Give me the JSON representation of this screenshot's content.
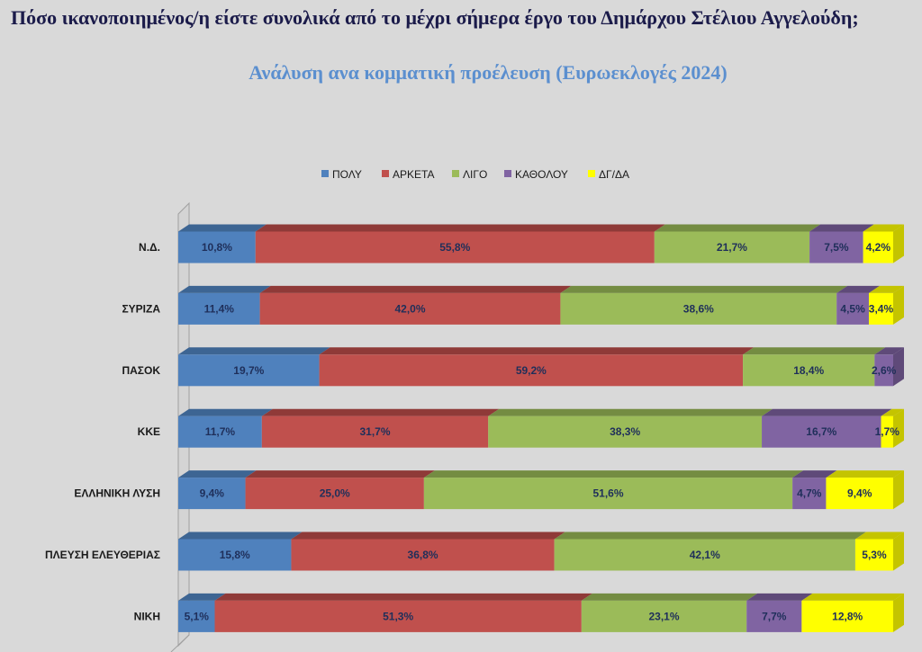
{
  "title": "Πόσο ικανοποιημένος/η είστε συνολικά  από το μέχρι σήμερα έργο του Δημάρχου Στέλιου Αγγελούδη;",
  "subtitle": "Ανάλυση ανα κομματική προέλευση (Ευρωεκλογές 2024)",
  "chart_data": {
    "type": "bar",
    "orientation": "horizontal",
    "stacked": "percent",
    "legend_position": "top",
    "categories": [
      "Ν.Δ.",
      "ΣΥΡΙΖΑ",
      "ΠΑΣΟΚ",
      "ΚΚΕ",
      "ΕΛΛΗΝΙΚΗ ΛΥΣΗ",
      "ΠΛΕΥΣΗ ΕΛΕΥΘΕΡΙΑΣ",
      "ΝΙΚΗ"
    ],
    "series": [
      {
        "name": "ΠΟΛΥ",
        "color": "#4f81bd",
        "top": "#3d6593",
        "values": [
          10.8,
          11.4,
          19.7,
          11.7,
          9.4,
          15.8,
          5.1
        ],
        "labels": [
          "10,8%",
          "11,4%",
          "19,7%",
          "11,7%",
          "9,4%",
          "15,8%",
          "5,1%"
        ]
      },
      {
        "name": "ΑΡΚΕΤΑ",
        "color": "#c0504d",
        "top": "#8f3a38",
        "values": [
          55.8,
          42.0,
          59.2,
          31.7,
          25.0,
          36.8,
          51.3
        ],
        "labels": [
          "55,8%",
          "42,0%",
          "59,2%",
          "31,7%",
          "25,0%",
          "36,8%",
          "51,3%"
        ]
      },
      {
        "name": "ΛΙΓΟ",
        "color": "#9bbb59",
        "top": "#748c42",
        "values": [
          21.7,
          38.6,
          18.4,
          38.3,
          51.6,
          42.1,
          23.1
        ],
        "labels": [
          "21,7%",
          "38,6%",
          "18,4%",
          "38,3%",
          "51,6%",
          "42,1%",
          "23,1%"
        ]
      },
      {
        "name": "ΚΑΘΟΛΟΥ",
        "color": "#8064a2",
        "top": "#5f4a79",
        "values": [
          7.5,
          4.5,
          2.6,
          16.7,
          4.7,
          0,
          7.7
        ],
        "labels": [
          "7,5%",
          "4,5%",
          "2,6%",
          "16,7%",
          "4,7%",
          "",
          "7,7%"
        ]
      },
      {
        "name": "ΔΓ/ΔΑ",
        "color": "#ffff00",
        "top": "#c4c400",
        "values": [
          4.2,
          3.4,
          0,
          1.7,
          9.4,
          5.3,
          12.8
        ],
        "labels": [
          "4,2%",
          "3,4%",
          "",
          "1,7%",
          "9,4%",
          "5,3%",
          "12,8%"
        ]
      }
    ],
    "xlim": [
      0,
      100
    ]
  }
}
